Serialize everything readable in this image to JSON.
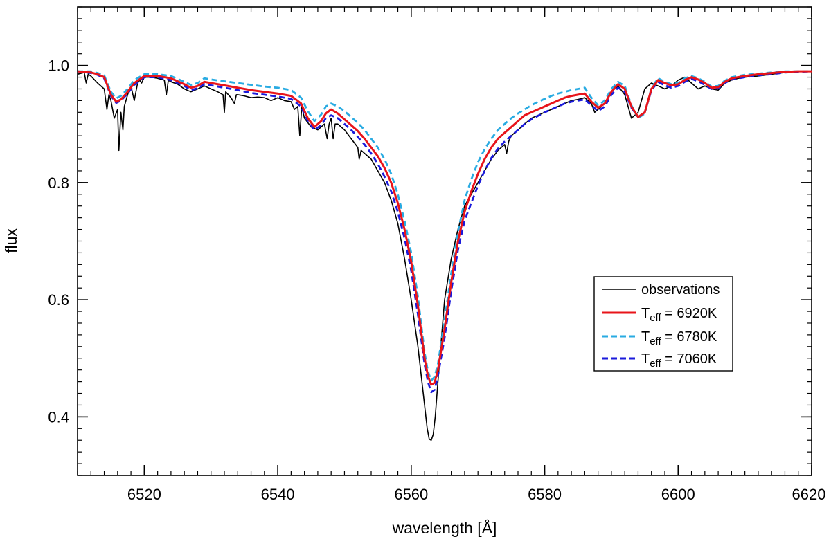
{
  "chart_data": {
    "type": "line",
    "xlabel": "wavelength [Å]",
    "ylabel": "flux",
    "xlim": [
      6510,
      6620
    ],
    "ylim": [
      0.3,
      1.1
    ],
    "x_major_ticks": [
      6520,
      6540,
      6560,
      6580,
      6600,
      6620
    ],
    "x_minor_step": 2,
    "y_major_ticks": [
      0.4,
      0.6,
      0.8,
      1.0
    ],
    "y_minor_step": 0.02,
    "x_tick_labels": [
      "6520",
      "6540",
      "6560",
      "6580",
      "6600",
      "6620"
    ],
    "y_tick_labels": [
      "0.4",
      "0.6",
      "0.8",
      "1.0"
    ],
    "grid": false,
    "legend": {
      "position": "center-right",
      "entries": [
        {
          "label": "observations",
          "prefix": "",
          "sub": "",
          "suffix": ""
        },
        {
          "label": "",
          "prefix": "T",
          "sub": "eff",
          "suffix": " = 6920K"
        },
        {
          "label": "",
          "prefix": "T",
          "sub": "eff",
          "suffix": " = 6780K"
        },
        {
          "label": "",
          "prefix": "T",
          "sub": "eff",
          "suffix": " = 7060K"
        }
      ]
    },
    "series": [
      {
        "style": "solid-thin",
        "color": "#000000",
        "x": [
          6510,
          6511,
          6511.3,
          6511.6,
          6512,
          6513,
          6514,
          6514.4,
          6514.7,
          6515,
          6515.5,
          6516,
          6516.2,
          6516.5,
          6516.8,
          6517,
          6517.5,
          6518,
          6518.5,
          6519,
          6519.3,
          6519.6,
          6520,
          6521,
          6522,
          6523,
          6523.3,
          6523.6,
          6524,
          6525,
          6526,
          6527,
          6528,
          6529,
          6530,
          6531,
          6531.8,
          6532,
          6532.2,
          6533,
          6533.5,
          6533.8,
          6534,
          6535,
          6536,
          6537,
          6538,
          6539,
          6540,
          6541,
          6542,
          6542.5,
          6543,
          6543.3,
          6543.6,
          6544,
          6545,
          6546,
          6547,
          6547.4,
          6547.7,
          6548,
          6548.3,
          6548.6,
          6549,
          6550,
          6551,
          6552,
          6552.2,
          6552.5,
          6553,
          6554,
          6555,
          6556,
          6557,
          6558,
          6559,
          6560,
          6561,
          6561.5,
          6562,
          6562.4,
          6562.7,
          6563,
          6563.3,
          6563.6,
          6564,
          6564.5,
          6565,
          6566,
          6567,
          6568,
          6569,
          6570,
          6571,
          6571.5,
          6572,
          6573,
          6574,
          6574.3,
          6574.6,
          6575,
          6576,
          6577,
          6578,
          6579,
          6580,
          6581,
          6582,
          6583,
          6584,
          6585,
          6586,
          6587,
          6587.5,
          6588,
          6589,
          6590,
          6591,
          6592,
          6593,
          6594,
          6595,
          6596,
          6597,
          6598,
          6599,
          6600,
          6601,
          6602,
          6603,
          6604,
          6605,
          6606,
          6607,
          6608,
          6609,
          6610,
          6612,
          6614,
          6616,
          6618,
          6620
        ],
        "y": [
          0.985,
          0.988,
          0.97,
          0.985,
          0.982,
          0.97,
          0.96,
          0.925,
          0.95,
          0.94,
          0.91,
          0.925,
          0.855,
          0.92,
          0.89,
          0.93,
          0.95,
          0.965,
          0.94,
          0.97,
          0.975,
          0.97,
          0.98,
          0.98,
          0.978,
          0.975,
          0.95,
          0.975,
          0.972,
          0.968,
          0.96,
          0.955,
          0.96,
          0.965,
          0.96,
          0.955,
          0.95,
          0.92,
          0.955,
          0.945,
          0.935,
          0.95,
          0.95,
          0.948,
          0.945,
          0.946,
          0.945,
          0.94,
          0.945,
          0.94,
          0.938,
          0.925,
          0.93,
          0.88,
          0.93,
          0.91,
          0.895,
          0.89,
          0.9,
          0.875,
          0.9,
          0.91,
          0.875,
          0.9,
          0.9,
          0.89,
          0.875,
          0.86,
          0.84,
          0.855,
          0.85,
          0.84,
          0.82,
          0.8,
          0.77,
          0.73,
          0.67,
          0.6,
          0.52,
          0.47,
          0.42,
          0.38,
          0.362,
          0.36,
          0.37,
          0.4,
          0.46,
          0.53,
          0.6,
          0.67,
          0.72,
          0.76,
          0.78,
          0.8,
          0.82,
          0.83,
          0.84,
          0.855,
          0.865,
          0.85,
          0.87,
          0.88,
          0.89,
          0.9,
          0.91,
          0.915,
          0.92,
          0.925,
          0.93,
          0.935,
          0.94,
          0.942,
          0.945,
          0.935,
          0.92,
          0.925,
          0.935,
          0.955,
          0.965,
          0.95,
          0.91,
          0.92,
          0.96,
          0.97,
          0.965,
          0.96,
          0.965,
          0.975,
          0.98,
          0.97,
          0.96,
          0.965,
          0.96,
          0.958,
          0.97,
          0.975,
          0.978,
          0.98,
          0.982,
          0.985,
          0.988,
          0.99,
          0.99
        ]
      },
      {
        "style": "solid-thick",
        "color": "#e8141a",
        "x": [
          6510,
          6512,
          6513,
          6514,
          6515,
          6515.8,
          6516.5,
          6517.5,
          6518.5,
          6520,
          6522,
          6524,
          6526,
          6527,
          6528,
          6529,
          6530,
          6532,
          6534,
          6536,
          6538,
          6540,
          6542,
          6543.5,
          6544.5,
          6545.5,
          6546.5,
          6547.2,
          6548,
          6549,
          6550,
          6551,
          6552,
          6553,
          6554,
          6555,
          6556,
          6557,
          6558,
          6559,
          6560,
          6561,
          6562,
          6562.5,
          6563,
          6563.5,
          6564,
          6565,
          6566,
          6567,
          6568,
          6569,
          6570,
          6571,
          6572,
          6573,
          6574,
          6575,
          6576,
          6577,
          6578,
          6579,
          6580,
          6581,
          6582,
          6583,
          6584,
          6585,
          6586,
          6587,
          6588,
          6589,
          6590,
          6591,
          6592,
          6593,
          6594,
          6595,
          6596,
          6597,
          6598,
          6599,
          6600,
          6601,
          6602,
          6603,
          6604,
          6605,
          6606,
          6607,
          6608,
          6610,
          6612,
          6614,
          6616,
          6618,
          6620
        ],
        "y": [
          0.99,
          0.988,
          0.985,
          0.98,
          0.95,
          0.938,
          0.942,
          0.955,
          0.97,
          0.982,
          0.982,
          0.978,
          0.968,
          0.962,
          0.965,
          0.972,
          0.97,
          0.966,
          0.962,
          0.958,
          0.955,
          0.952,
          0.948,
          0.935,
          0.91,
          0.895,
          0.905,
          0.918,
          0.925,
          0.918,
          0.908,
          0.898,
          0.888,
          0.875,
          0.86,
          0.845,
          0.825,
          0.8,
          0.765,
          0.72,
          0.665,
          0.59,
          0.5,
          0.47,
          0.455,
          0.458,
          0.48,
          0.55,
          0.63,
          0.7,
          0.75,
          0.785,
          0.815,
          0.84,
          0.86,
          0.875,
          0.885,
          0.895,
          0.905,
          0.915,
          0.92,
          0.925,
          0.93,
          0.935,
          0.94,
          0.945,
          0.948,
          0.95,
          0.952,
          0.938,
          0.928,
          0.935,
          0.955,
          0.968,
          0.96,
          0.93,
          0.912,
          0.92,
          0.96,
          0.975,
          0.97,
          0.966,
          0.968,
          0.975,
          0.98,
          0.976,
          0.97,
          0.962,
          0.963,
          0.972,
          0.978,
          0.982,
          0.985,
          0.987,
          0.989,
          0.99,
          0.99
        ]
      },
      {
        "style": "dashed",
        "color": "#29abe2",
        "x": [
          6510,
          6512,
          6513,
          6514,
          6515,
          6515.8,
          6516.5,
          6517.5,
          6518.5,
          6520,
          6522,
          6524,
          6526,
          6527,
          6528,
          6529,
          6530,
          6532,
          6534,
          6536,
          6538,
          6540,
          6542,
          6543.5,
          6544.5,
          6545.5,
          6546.5,
          6547.2,
          6548,
          6549,
          6550,
          6551,
          6552,
          6553,
          6554,
          6555,
          6556,
          6557,
          6558,
          6559,
          6560,
          6561,
          6562,
          6562.5,
          6563,
          6563.5,
          6564,
          6565,
          6566,
          6567,
          6568,
          6569,
          6570,
          6571,
          6572,
          6573,
          6574,
          6575,
          6576,
          6577,
          6578,
          6579,
          6580,
          6581,
          6582,
          6583,
          6584,
          6585,
          6586,
          6587,
          6588,
          6589,
          6590,
          6591,
          6592,
          6593,
          6594,
          6595,
          6596,
          6597,
          6598,
          6599,
          6600,
          6601,
          6602,
          6603,
          6604,
          6605,
          6606,
          6607,
          6608,
          6610,
          6612,
          6614,
          6616,
          6618,
          6620
        ],
        "y": [
          0.99,
          0.99,
          0.987,
          0.983,
          0.955,
          0.944,
          0.948,
          0.96,
          0.975,
          0.985,
          0.985,
          0.982,
          0.972,
          0.967,
          0.97,
          0.978,
          0.976,
          0.973,
          0.97,
          0.967,
          0.964,
          0.962,
          0.958,
          0.945,
          0.922,
          0.905,
          0.916,
          0.93,
          0.935,
          0.93,
          0.922,
          0.912,
          0.902,
          0.89,
          0.875,
          0.86,
          0.84,
          0.815,
          0.78,
          0.735,
          0.68,
          0.605,
          0.51,
          0.478,
          0.462,
          0.468,
          0.49,
          0.565,
          0.645,
          0.715,
          0.77,
          0.805,
          0.835,
          0.857,
          0.875,
          0.89,
          0.9,
          0.91,
          0.918,
          0.925,
          0.932,
          0.938,
          0.943,
          0.948,
          0.952,
          0.955,
          0.958,
          0.96,
          0.962,
          0.945,
          0.932,
          0.94,
          0.96,
          0.972,
          0.965,
          0.932,
          0.91,
          0.918,
          0.962,
          0.978,
          0.972,
          0.968,
          0.97,
          0.978,
          0.982,
          0.978,
          0.972,
          0.964,
          0.965,
          0.974,
          0.98,
          0.984,
          0.986,
          0.988,
          0.99,
          0.99,
          0.99
        ]
      },
      {
        "style": "dashed",
        "color": "#1a1adb",
        "x": [
          6510,
          6512,
          6513,
          6514,
          6515,
          6515.8,
          6516.5,
          6517.5,
          6518.5,
          6520,
          6522,
          6524,
          6526,
          6527,
          6528,
          6529,
          6530,
          6532,
          6534,
          6536,
          6538,
          6540,
          6542,
          6543.5,
          6544.5,
          6545.5,
          6546.5,
          6547.2,
          6548,
          6549,
          6550,
          6551,
          6552,
          6553,
          6554,
          6555,
          6556,
          6557,
          6558,
          6559,
          6560,
          6561,
          6562,
          6562.5,
          6563,
          6563.5,
          6564,
          6565,
          6566,
          6567,
          6568,
          6569,
          6570,
          6571,
          6572,
          6573,
          6574,
          6575,
          6576,
          6577,
          6578,
          6579,
          6580,
          6581,
          6582,
          6583,
          6584,
          6585,
          6586,
          6587,
          6588,
          6589,
          6590,
          6591,
          6592,
          6593,
          6594,
          6595,
          6596,
          6597,
          6598,
          6599,
          6600,
          6601,
          6602,
          6603,
          6604,
          6605,
          6606,
          6607,
          6608,
          6610,
          6612,
          6614,
          6616,
          6618,
          6620
        ],
        "y": [
          0.99,
          0.987,
          0.984,
          0.978,
          0.948,
          0.936,
          0.94,
          0.952,
          0.967,
          0.98,
          0.98,
          0.975,
          0.965,
          0.958,
          0.961,
          0.968,
          0.966,
          0.962,
          0.958,
          0.953,
          0.95,
          0.947,
          0.943,
          0.93,
          0.905,
          0.89,
          0.898,
          0.91,
          0.915,
          0.91,
          0.9,
          0.89,
          0.878,
          0.865,
          0.85,
          0.832,
          0.81,
          0.785,
          0.75,
          0.705,
          0.65,
          0.575,
          0.49,
          0.46,
          0.442,
          0.446,
          0.47,
          0.535,
          0.615,
          0.685,
          0.735,
          0.765,
          0.795,
          0.82,
          0.842,
          0.858,
          0.87,
          0.88,
          0.89,
          0.9,
          0.908,
          0.914,
          0.92,
          0.925,
          0.93,
          0.935,
          0.938,
          0.94,
          0.942,
          0.932,
          0.922,
          0.93,
          0.95,
          0.962,
          0.955,
          0.928,
          0.912,
          0.92,
          0.958,
          0.972,
          0.966,
          0.962,
          0.965,
          0.972,
          0.977,
          0.973,
          0.967,
          0.96,
          0.961,
          0.97,
          0.976,
          0.98,
          0.983,
          0.985,
          0.988,
          0.989,
          0.99
        ]
      }
    ]
  }
}
